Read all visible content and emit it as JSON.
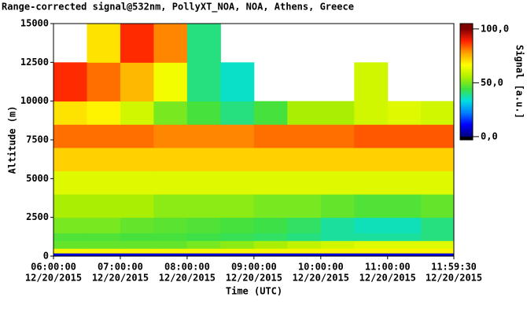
{
  "chart_data": {
    "type": "heatmap",
    "title": "Range-corrected signal@532nm, PollyXT_NOA, NOA, Athens, Greece",
    "xlabel": "Time (UTC)",
    "ylabel": "Altitude (m)",
    "colorbar_label": "Signal [a.u.]",
    "xlim": [
      6,
      11.9917
    ],
    "xticks": [
      {
        "value": 6,
        "label": "06:00:00"
      },
      {
        "value": 7,
        "label": "07:00:00"
      },
      {
        "value": 8,
        "label": "08:00:00"
      },
      {
        "value": 9,
        "label": "09:00:00"
      },
      {
        "value": 10,
        "label": "10:00:00"
      },
      {
        "value": 11,
        "label": "11:00:00"
      },
      {
        "value": 11.9917,
        "label": "11:59:30"
      }
    ],
    "xtick_sublabels": [
      "12/20/2015",
      "12/20/2015",
      "12/20/2015",
      "12/20/2015",
      "12/20/2015",
      "12/20/2015",
      "12/20/2015"
    ],
    "ylim": [
      0,
      15000
    ],
    "yticks": [
      0,
      2500,
      5000,
      7500,
      10000,
      12500,
      15000
    ],
    "zlim": [
      -3,
      105
    ],
    "zticks": [
      {
        "value": 0,
        "label": "0,0"
      },
      {
        "value": 50,
        "label": "50,0"
      },
      {
        "value": 100,
        "label": "100,0"
      }
    ],
    "colormap": [
      "#00007f",
      "#0000ff",
      "#0080ff",
      "#00e0e0",
      "#40e040",
      "#b0f000",
      "#ffff00",
      "#ffa000",
      "#ff2000",
      "#800000"
    ],
    "x_bins": [
      6,
      6.5,
      7,
      7.5,
      8,
      8.5,
      9,
      9.5,
      10,
      10.5,
      11,
      11.5,
      11.9917
    ],
    "y_bins": [
      0,
      200,
      500,
      1000,
      1500,
      2500,
      4000,
      5500,
      7000,
      8500,
      10000,
      12500,
      15000
    ],
    "values": [
      [
        8,
        8,
        8,
        8,
        8,
        8,
        8,
        8,
        8,
        8,
        8,
        8
      ],
      [
        68,
        68,
        68,
        68,
        68,
        68,
        68,
        68,
        68,
        68,
        68,
        68
      ],
      [
        48,
        48,
        48,
        48,
        50,
        52,
        55,
        58,
        60,
        62,
        62,
        62
      ],
      [
        46,
        46,
        45,
        45,
        44,
        43,
        42,
        40,
        38,
        38,
        38,
        40
      ],
      [
        50,
        50,
        48,
        47,
        46,
        45,
        44,
        42,
        38,
        36,
        36,
        40
      ],
      [
        55,
        55,
        55,
        52,
        52,
        52,
        50,
        50,
        48,
        46,
        46,
        48
      ],
      [
        62,
        62,
        62,
        62,
        62,
        62,
        62,
        62,
        62,
        62,
        62,
        62
      ],
      [
        72,
        72,
        72,
        72,
        72,
        72,
        72,
        72,
        72,
        72,
        72,
        72
      ],
      [
        82,
        82,
        82,
        80,
        80,
        80,
        82,
        82,
        82,
        84,
        84,
        84
      ],
      [
        70,
        68,
        60,
        50,
        45,
        40,
        45,
        55,
        55,
        60,
        62,
        60
      ],
      [
        88,
        82,
        75,
        65,
        40,
        35,
        null,
        null,
        null,
        60,
        null,
        null
      ],
      [
        null,
        70,
        88,
        80,
        40,
        null,
        null,
        null,
        null,
        null,
        null,
        null
      ]
    ]
  }
}
